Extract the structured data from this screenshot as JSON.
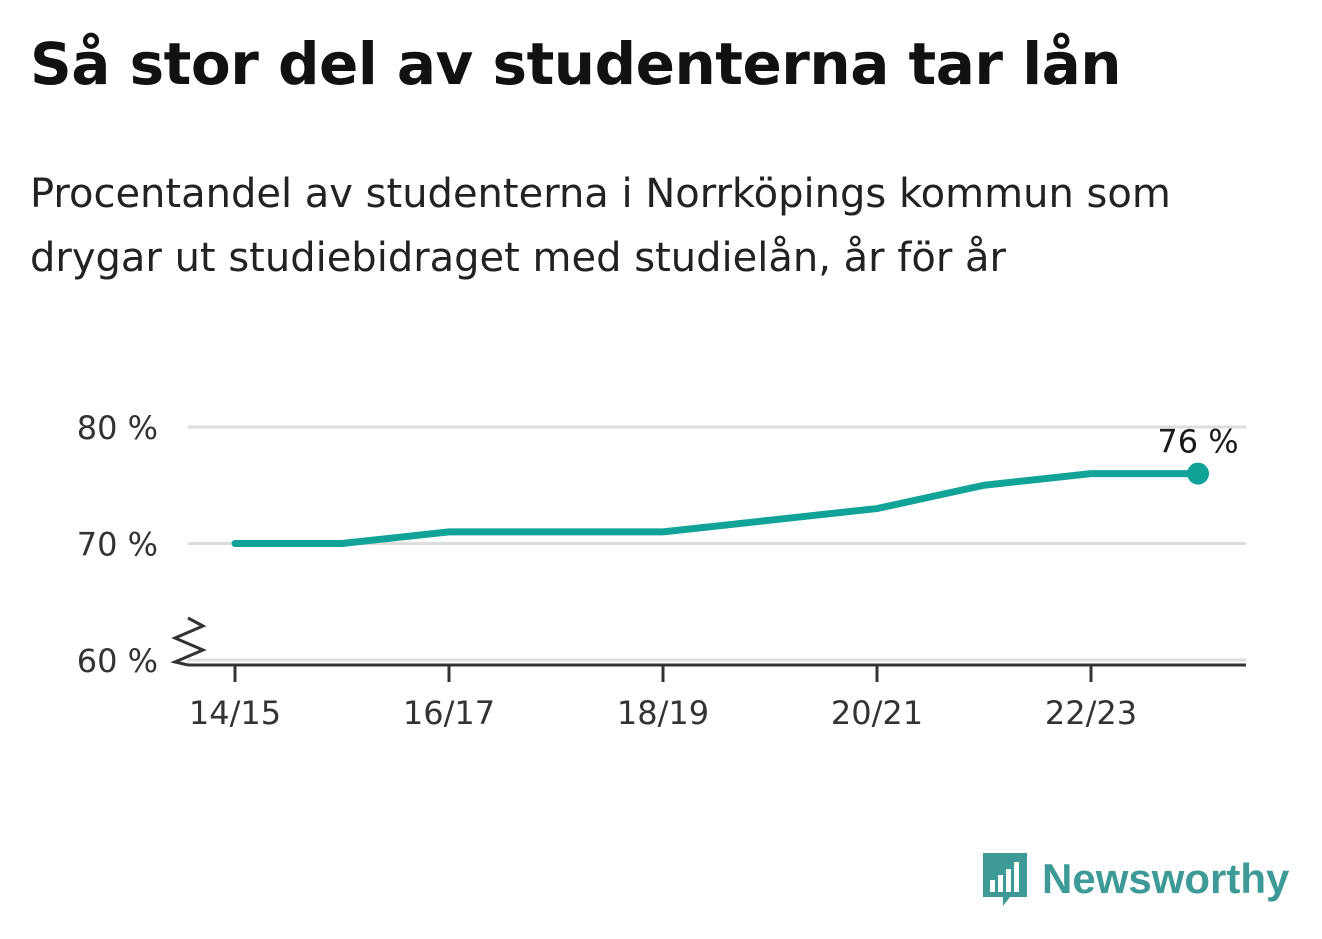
{
  "header": {
    "title": "Så stor del av studenterna tar lån",
    "subtitle": "Procentandel av studenterna i Norrköpings kommun som drygar ut studiebidraget med studielån, år för år"
  },
  "chart_data": {
    "type": "line",
    "title": "Så stor del av studenterna tar lån",
    "subtitle": "Procentandel av studenterna i Norrköpings kommun som drygar ut studiebidraget med studielån, år för år",
    "xlabel": "",
    "ylabel": "",
    "x": [
      "14/15",
      "15/16",
      "16/17",
      "17/18",
      "18/19",
      "19/20",
      "20/21",
      "21/22",
      "22/23",
      "23/24"
    ],
    "x_ticks": [
      "14/15",
      "16/17",
      "18/19",
      "20/21",
      "22/23"
    ],
    "y_ticks": [
      60,
      70,
      80
    ],
    "y_tick_labels": [
      "60 %",
      "70 %",
      "80 %"
    ],
    "ylim": [
      60,
      80
    ],
    "axis_break": true,
    "grid": true,
    "legend": "none",
    "series": [
      {
        "values": [
          70,
          70,
          71,
          71,
          71,
          72,
          73,
          75,
          76,
          76
        ]
      }
    ],
    "end_label": "76 %",
    "colors": {
      "line": "#12a398",
      "grid": "#dddddd",
      "axis": "#333333"
    }
  },
  "branding": {
    "name": "Newsworthy",
    "icon": "bar-chart-speech-bubble-icon",
    "color": "#3e9a96"
  }
}
